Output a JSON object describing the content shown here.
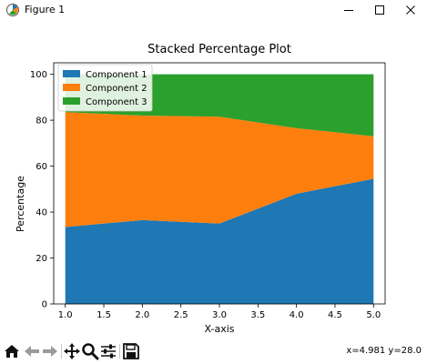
{
  "window": {
    "title": "Figure 1",
    "controls": [
      "minimize",
      "maximize",
      "close"
    ]
  },
  "toolbar": {
    "tools": [
      "home-icon",
      "back-arrow-icon",
      "forward-arrow-icon",
      "pan-icon",
      "zoom-icon",
      "configure-subplots-icon",
      "save-icon"
    ],
    "coordinates": "x=4.981 y=28.0"
  },
  "chart_data": {
    "type": "area",
    "stacked": true,
    "title": "Stacked Percentage Plot",
    "xlabel": "X-axis",
    "ylabel": "Percentage",
    "x": [
      1,
      2,
      3,
      4,
      5
    ],
    "xlim": [
      0.85,
      5.15
    ],
    "ylim": [
      0,
      105
    ],
    "xticks": [
      "1.0",
      "1.5",
      "2.0",
      "2.5",
      "3.0",
      "3.5",
      "4.0",
      "4.5",
      "5.0"
    ],
    "yticks": [
      "0",
      "20",
      "40",
      "60",
      "80",
      "100"
    ],
    "grid": false,
    "legend": "top-left",
    "series": [
      {
        "name": "Component 1",
        "color": "#1f77b4",
        "values": [
          33.5,
          36.5,
          35,
          48,
          54.5
        ]
      },
      {
        "name": "Component 2",
        "color": "#ff7f0e",
        "values": [
          50,
          45.5,
          46.5,
          28.5,
          18.5
        ]
      },
      {
        "name": "Component 3",
        "color": "#2ca02c",
        "values": [
          16.5,
          18,
          18.5,
          23.5,
          27
        ]
      }
    ]
  }
}
